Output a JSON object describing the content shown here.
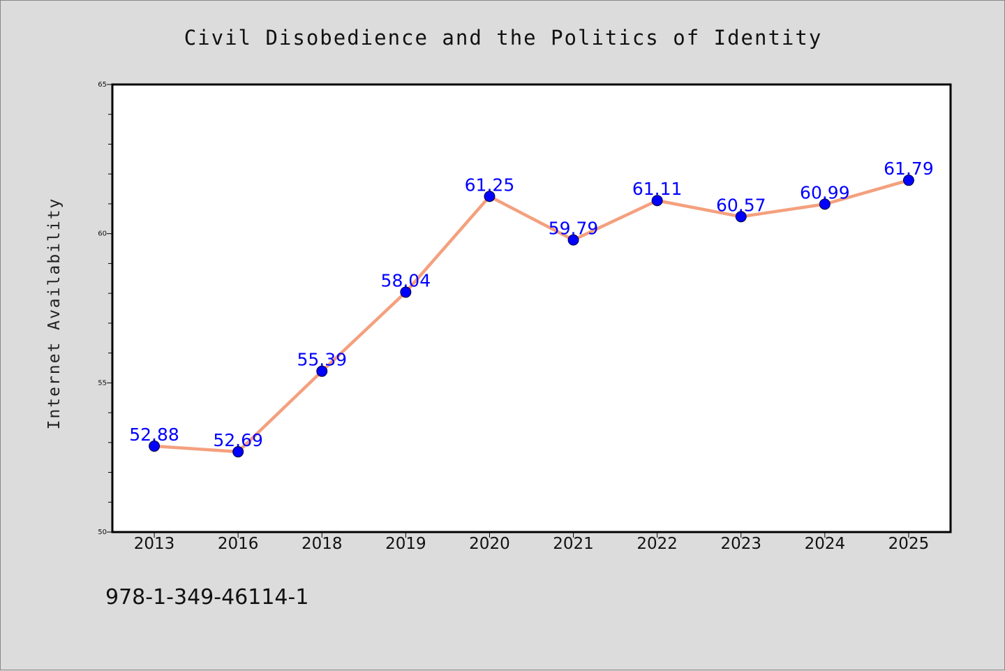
{
  "colors": {
    "line": "#f4a07e",
    "marker": "#0000ff",
    "label": "#0000ff",
    "background": "#dcdcdc",
    "plot_bg": "#ffffff"
  },
  "footer": {
    "isbn": "978-1-349-46114-1"
  },
  "chart_data": {
    "type": "line",
    "title": "Civil Disobedience and the Politics of Identity",
    "xlabel": "",
    "ylabel": "Internet Availability",
    "categories": [
      "2013",
      "2016",
      "2018",
      "2019",
      "2020",
      "2021",
      "2022",
      "2023",
      "2024",
      "2025"
    ],
    "series": [
      {
        "values": [
          52.88,
          52.69,
          55.39,
          58.04,
          61.25,
          59.79,
          61.11,
          60.57,
          60.99,
          61.79
        ]
      }
    ],
    "data_labels": [
      "52.88",
      "52.69",
      "55.39",
      "58.04",
      "61.25",
      "59.79",
      "61.11",
      "60.57",
      "60.99",
      "61.79"
    ],
    "ylim": [
      50,
      65
    ],
    "yticks": [
      "50",
      "55",
      "60",
      "65"
    ],
    "grid": false,
    "legend": "none"
  }
}
